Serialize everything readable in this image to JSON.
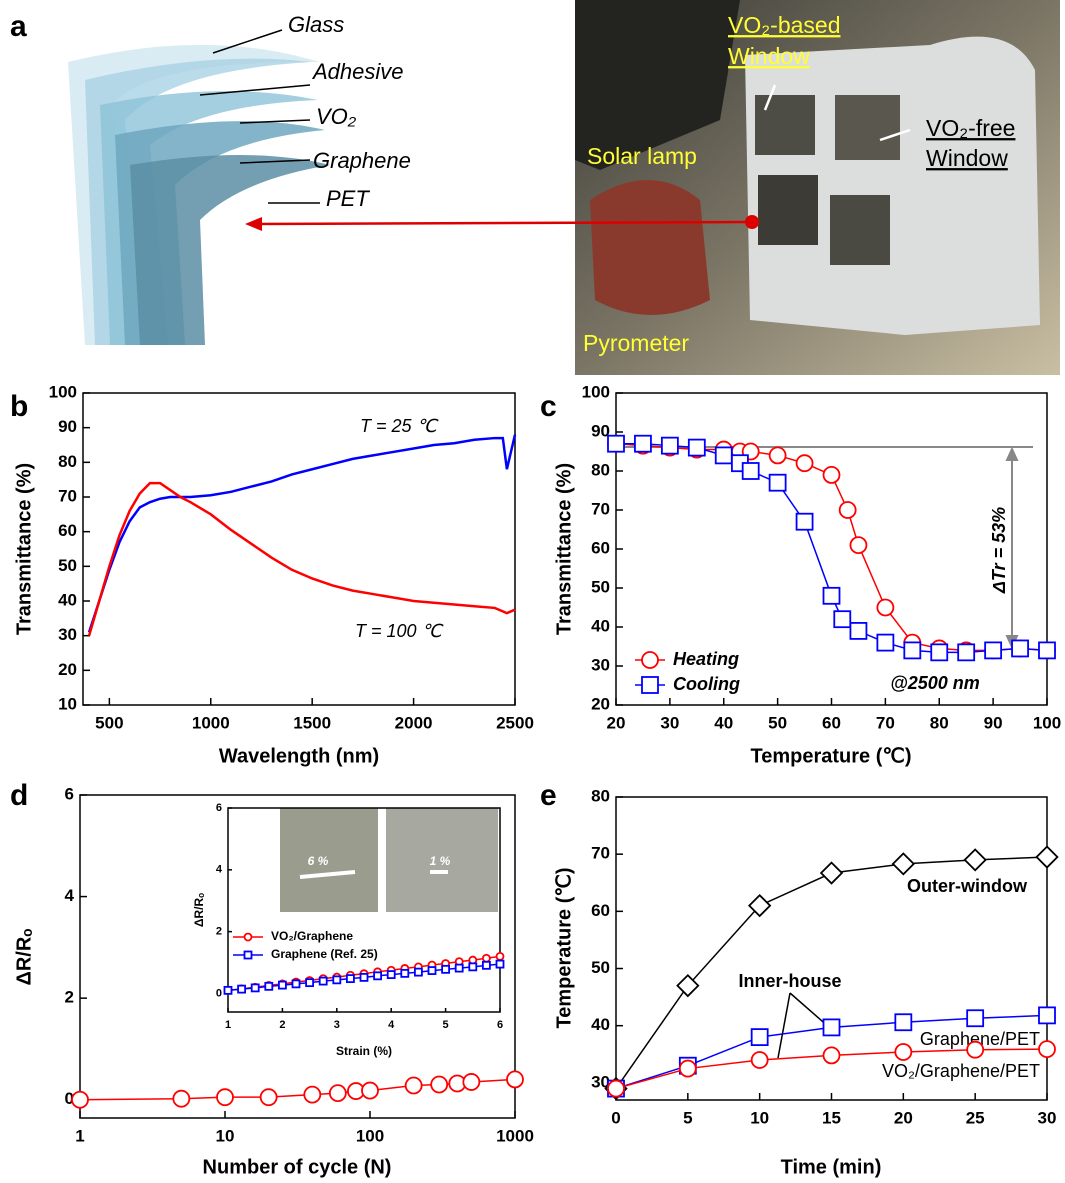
{
  "panel_labels": [
    "a",
    "b",
    "c",
    "d",
    "e"
  ],
  "panel_a": {
    "layers": [
      "Glass",
      "Adhesive",
      "VO₂",
      "Graphene",
      "PET"
    ],
    "photo_labels": {
      "vo2_window": [
        "VO₂-based",
        "Window"
      ],
      "solar_lamp": "Solar lamp",
      "vo2_free_window": [
        "VO₂-free",
        "Window"
      ],
      "pyrometer": "Pyrometer"
    }
  },
  "chart_data": [
    {
      "type": "line",
      "xlabel": "Wavelength (nm)",
      "ylabel": "Transmittance (%)",
      "xlim": [
        370,
        2500
      ],
      "ylim": [
        10,
        100
      ],
      "xticks": [
        500,
        1000,
        1500,
        2000,
        2500
      ],
      "yticks": [
        10,
        20,
        30,
        40,
        50,
        60,
        70,
        80,
        90,
        100
      ],
      "series": [
        {
          "name": "T = 25 ℃",
          "color": "#0000ff",
          "x": [
            400,
            450,
            500,
            550,
            600,
            650,
            700,
            750,
            800,
            850,
            900,
            1000,
            1100,
            1200,
            1300,
            1400,
            1500,
            1600,
            1700,
            1800,
            1900,
            2000,
            2100,
            2200,
            2300,
            2400,
            2440,
            2460,
            2500
          ],
          "values": [
            31,
            40,
            49,
            57,
            63,
            67,
            68.5,
            69.5,
            70,
            70,
            70,
            70.5,
            71.5,
            73,
            74.5,
            76.5,
            78,
            79.5,
            81,
            82,
            83,
            84,
            85,
            85.5,
            86.5,
            87,
            87,
            78,
            88
          ]
        },
        {
          "name": "T = 100 ℃",
          "color": "#ff0000",
          "x": [
            400,
            450,
            500,
            550,
            600,
            650,
            700,
            750,
            800,
            850,
            900,
            1000,
            1100,
            1200,
            1300,
            1400,
            1500,
            1600,
            1700,
            1800,
            1900,
            2000,
            2100,
            2200,
            2300,
            2400,
            2440,
            2460,
            2500
          ],
          "values": [
            30,
            40,
            50,
            59,
            66,
            71,
            74,
            74,
            72,
            70,
            68.5,
            65,
            60.5,
            56.5,
            52.5,
            49,
            46.5,
            44.5,
            43,
            42,
            41,
            40,
            39.5,
            39,
            38.5,
            38,
            37,
            36.5,
            37.5
          ]
        }
      ]
    },
    {
      "type": "line",
      "xlabel": "Temperature (℃)",
      "ylabel": "Transmittance (%)",
      "xlim": [
        20,
        100
      ],
      "ylim": [
        20,
        100
      ],
      "xticks": [
        20,
        30,
        40,
        50,
        60,
        70,
        80,
        90,
        100
      ],
      "yticks": [
        20,
        30,
        40,
        50,
        60,
        70,
        80,
        90,
        100
      ],
      "legend": true,
      "annotations": [
        "ΔTr = 53%",
        "@2500 nm"
      ],
      "series": [
        {
          "name": "Heating",
          "color": "#ff0000",
          "marker": "circle",
          "x": [
            20,
            25,
            30,
            35,
            40,
            43,
            45,
            50,
            55,
            60,
            63,
            65,
            70,
            75,
            80,
            85,
            90,
            95,
            100
          ],
          "values": [
            87,
            86.5,
            86,
            85.5,
            85.5,
            85,
            85,
            84,
            82,
            79,
            70,
            61,
            45,
            36,
            34.5,
            34,
            34,
            34.5,
            34
          ]
        },
        {
          "name": "Cooling",
          "color": "#0000ff",
          "marker": "square",
          "x": [
            20,
            25,
            30,
            35,
            40,
            43,
            45,
            50,
            55,
            60,
            62,
            65,
            70,
            75,
            80,
            85,
            90,
            95,
            100
          ],
          "values": [
            87,
            87,
            86.5,
            86,
            84,
            82,
            80,
            77,
            67,
            48,
            42,
            39,
            36,
            34,
            33.5,
            33.5,
            34,
            34.5,
            34
          ]
        }
      ]
    },
    {
      "type": "line",
      "xlabel": "Number of cycle (N)",
      "ylabel": "ΔR/Rₒ",
      "xscale": "log",
      "xlim": [
        1,
        1000
      ],
      "ylim": [
        -0.36,
        6
      ],
      "xticks": [
        1,
        10,
        100,
        1000
      ],
      "yticks": [
        0,
        2,
        4,
        6
      ],
      "series": [
        {
          "color": "#ff0000",
          "marker": "circle",
          "x": [
            1,
            5,
            10,
            20,
            40,
            60,
            80,
            100,
            200,
            300,
            400,
            500,
            1000
          ],
          "values": [
            0,
            0.02,
            0.05,
            0.05,
            0.1,
            0.13,
            0.17,
            0.18,
            0.28,
            0.3,
            0.32,
            0.35,
            0.4
          ]
        }
      ]
    },
    {
      "type": "line",
      "xlabel": "Strain (%)",
      "ylabel": "ΔR/Rₒ",
      "xlim": [
        1,
        6
      ],
      "ylim": [
        -0.6,
        6
      ],
      "xticks": [
        1,
        2,
        3,
        4,
        5,
        6
      ],
      "yticks": [
        0,
        2,
        4,
        6
      ],
      "legend": true,
      "annotations": [
        "6 %",
        "1 %"
      ],
      "series": [
        {
          "name": "VO₂/Graphene",
          "color": "#ff0000",
          "marker": "circle",
          "x": [
            1,
            1.25,
            1.5,
            1.75,
            2,
            2.25,
            2.5,
            2.75,
            3,
            3.25,
            3.5,
            3.75,
            4,
            4.25,
            4.5,
            4.75,
            5,
            5.25,
            5.5,
            5.75,
            6
          ],
          "values": [
            0.1,
            0.15,
            0.2,
            0.26,
            0.31,
            0.37,
            0.42,
            0.48,
            0.53,
            0.59,
            0.64,
            0.7,
            0.75,
            0.81,
            0.86,
            0.92,
            0.97,
            1.03,
            1.08,
            1.14,
            1.2
          ]
        },
        {
          "name": "Graphene (Ref. 25)",
          "color": "#0000ff",
          "marker": "square",
          "x": [
            1,
            1.25,
            1.5,
            1.75,
            2,
            2.25,
            2.5,
            2.75,
            3,
            3.25,
            3.5,
            3.75,
            4,
            4.25,
            4.5,
            4.75,
            5,
            5.25,
            5.5,
            5.75,
            6
          ],
          "values": [
            0.1,
            0.14,
            0.18,
            0.23,
            0.27,
            0.31,
            0.35,
            0.4,
            0.44,
            0.48,
            0.52,
            0.57,
            0.61,
            0.65,
            0.69,
            0.74,
            0.78,
            0.82,
            0.86,
            0.91,
            0.95
          ]
        }
      ]
    },
    {
      "type": "line",
      "xlabel": "Time (min)",
      "ylabel": "Temperature (℃)",
      "xlim": [
        0,
        30
      ],
      "ylim": [
        27,
        80
      ],
      "xticks": [
        0,
        5,
        10,
        15,
        20,
        25,
        30
      ],
      "yticks": [
        30,
        40,
        50,
        60,
        70,
        80
      ],
      "annotations": [
        "Inner-house"
      ],
      "series": [
        {
          "name": "Outer-window",
          "color": "#000000",
          "marker": "diamond",
          "x": [
            0,
            5,
            10,
            15,
            20,
            25,
            30
          ],
          "values": [
            29,
            47,
            61,
            66.7,
            68.3,
            69,
            69.5
          ]
        },
        {
          "name": "Graphene/PET",
          "color": "#0000ff",
          "marker": "square",
          "x": [
            0,
            5,
            10,
            15,
            20,
            25,
            30
          ],
          "values": [
            29,
            33,
            38,
            39.7,
            40.6,
            41.3,
            41.8
          ]
        },
        {
          "name": "VO₂/Graphene/PET",
          "color": "#ff0000",
          "marker": "circle",
          "x": [
            0,
            5,
            10,
            15,
            20,
            25,
            30
          ],
          "values": [
            29,
            32.5,
            34,
            34.8,
            35.4,
            35.8,
            35.9
          ]
        }
      ]
    }
  ]
}
